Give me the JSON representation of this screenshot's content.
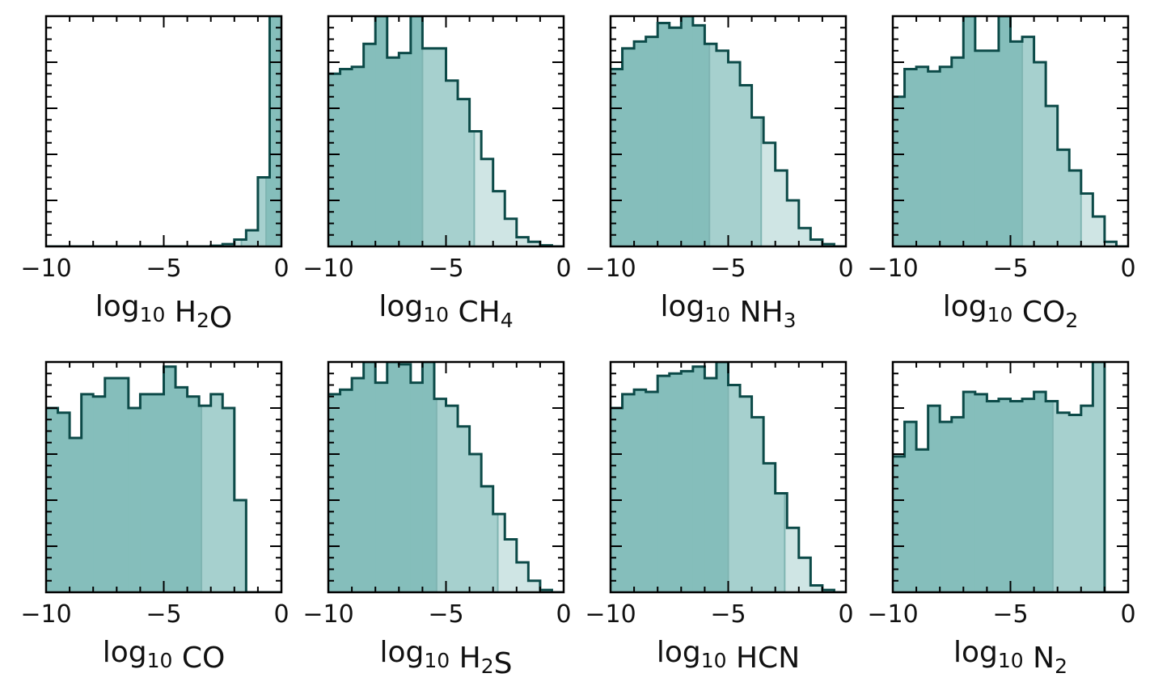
{
  "figure": {
    "colors": {
      "dark": "#85bebb",
      "mid": "#a6d0ce",
      "light": "#cfe5e4",
      "edge": "#0c4a48",
      "band_line": "#7fb5b2",
      "frame": "#000000"
    },
    "x_tick_values": [
      -10,
      -5,
      0
    ],
    "x_tick_labels": [
      "−10",
      "−5",
      "0"
    ]
  },
  "chart_data": [
    {
      "type": "histogram",
      "xlabel": "log10 H2O",
      "label_parts": [
        {
          "t": "log"
        },
        {
          "t": "10",
          "sub": true
        },
        {
          "t": " H"
        },
        {
          "t": "2",
          "sub": true
        },
        {
          "t": "O"
        }
      ],
      "xlim": [
        -10,
        0
      ],
      "ylim": [
        0,
        100
      ],
      "bin_width": 0.5,
      "bin_start": -10,
      "counts": [
        0,
        0,
        0,
        0,
        0,
        0,
        0,
        0,
        0,
        0,
        0,
        0,
        0,
        0,
        0.3,
        1,
        3,
        7,
        30,
        100
      ],
      "band_68": [
        -0.65,
        0
      ],
      "band_95": [
        -1.7,
        0
      ]
    },
    {
      "type": "histogram",
      "xlabel": "log10 CH4",
      "label_parts": [
        {
          "t": "log"
        },
        {
          "t": "10",
          "sub": true
        },
        {
          "t": " CH"
        },
        {
          "t": "4",
          "sub": true
        }
      ],
      "xlim": [
        -10,
        0
      ],
      "ylim": [
        0,
        100
      ],
      "bin_width": 0.5,
      "bin_start": -10,
      "counts": [
        75,
        77,
        78,
        88,
        100,
        82,
        84,
        100,
        86,
        86,
        72,
        64,
        50,
        38,
        24,
        12,
        4,
        2,
        0.5,
        0
      ],
      "band_68": [
        -10,
        -6.0
      ],
      "band_95": [
        -10,
        -3.8
      ]
    },
    {
      "type": "histogram",
      "xlabel": "log10 NH3",
      "label_parts": [
        {
          "t": "log"
        },
        {
          "t": "10",
          "sub": true
        },
        {
          "t": " NH"
        },
        {
          "t": "3",
          "sub": true
        }
      ],
      "xlim": [
        -10,
        0
      ],
      "ylim": [
        0,
        100
      ],
      "bin_width": 0.5,
      "bin_start": -10,
      "counts": [
        77,
        86,
        89,
        91,
        97,
        95,
        100,
        96,
        88,
        85,
        80,
        70,
        56,
        45,
        33,
        20,
        8,
        3,
        1,
        0
      ],
      "band_68": [
        -10,
        -5.8
      ],
      "band_95": [
        -10,
        -3.6
      ]
    },
    {
      "type": "histogram",
      "xlabel": "log10 CO2",
      "label_parts": [
        {
          "t": "log"
        },
        {
          "t": "10",
          "sub": true
        },
        {
          "t": " CO"
        },
        {
          "t": "2",
          "sub": true
        }
      ],
      "xlim": [
        -10,
        0
      ],
      "ylim": [
        0,
        100
      ],
      "bin_width": 0.5,
      "bin_start": -10,
      "counts": [
        65,
        77,
        78,
        76,
        78,
        82,
        100,
        85,
        85,
        100,
        89,
        91,
        80,
        61,
        42,
        33,
        23,
        13,
        2,
        0
      ],
      "band_68": [
        -10,
        -4.5
      ],
      "band_95": [
        -10,
        -2.0
      ]
    },
    {
      "type": "histogram",
      "xlabel": "log10 CO",
      "label_parts": [
        {
          "t": "log"
        },
        {
          "t": "10",
          "sub": true
        },
        {
          "t": " CO"
        }
      ],
      "xlim": [
        -10,
        0
      ],
      "ylim": [
        0,
        100
      ],
      "bin_width": 0.5,
      "bin_start": -10,
      "counts": [
        80,
        78,
        67,
        86,
        85,
        93,
        93,
        80,
        86,
        86,
        98,
        89,
        85,
        81,
        86,
        80,
        40,
        0,
        0,
        0
      ],
      "band_68": [
        -10,
        -3.4
      ],
      "band_95": [
        -10,
        -0.8
      ]
    },
    {
      "type": "histogram",
      "xlabel": "log10 H2S",
      "label_parts": [
        {
          "t": "log"
        },
        {
          "t": "10",
          "sub": true
        },
        {
          "t": " H"
        },
        {
          "t": "2",
          "sub": true
        },
        {
          "t": "S"
        }
      ],
      "xlim": [
        -10,
        0
      ],
      "ylim": [
        0,
        100
      ],
      "bin_width": 0.5,
      "bin_start": -10,
      "counts": [
        86,
        88,
        93,
        100,
        91,
        100,
        99,
        91,
        100,
        84,
        81,
        72,
        60,
        46,
        34,
        23,
        13,
        5,
        1,
        0
      ],
      "band_68": [
        -10,
        -5.4
      ],
      "band_95": [
        -10,
        -2.8
      ]
    },
    {
      "type": "histogram",
      "xlabel": "log10 HCN",
      "label_parts": [
        {
          "t": "log"
        },
        {
          "t": "10",
          "sub": true
        },
        {
          "t": " HCN"
        }
      ],
      "xlim": [
        -10,
        0
      ],
      "ylim": [
        0,
        100
      ],
      "bin_width": 0.5,
      "bin_start": -10,
      "counts": [
        80,
        86,
        88,
        87,
        94,
        95,
        96,
        98,
        93,
        100,
        90,
        85,
        76,
        56,
        43,
        28,
        15,
        3,
        1,
        0
      ],
      "band_68": [
        -10,
        -5.0
      ],
      "band_95": [
        -10,
        -2.6
      ]
    },
    {
      "type": "histogram",
      "xlabel": "log10 N2",
      "label_parts": [
        {
          "t": "log"
        },
        {
          "t": "10",
          "sub": true
        },
        {
          "t": " N"
        },
        {
          "t": "2",
          "sub": true
        }
      ],
      "xlim": [
        -10,
        0
      ],
      "ylim": [
        0,
        100
      ],
      "bin_width": 0.5,
      "bin_start": -10,
      "counts": [
        59,
        74,
        62,
        81,
        74,
        76,
        87,
        86,
        83,
        84,
        83,
        84,
        87,
        83,
        78,
        77,
        81,
        100,
        0,
        0
      ],
      "band_68": [
        -10,
        -3.2
      ],
      "band_95": [
        -10,
        -0.7
      ]
    }
  ]
}
